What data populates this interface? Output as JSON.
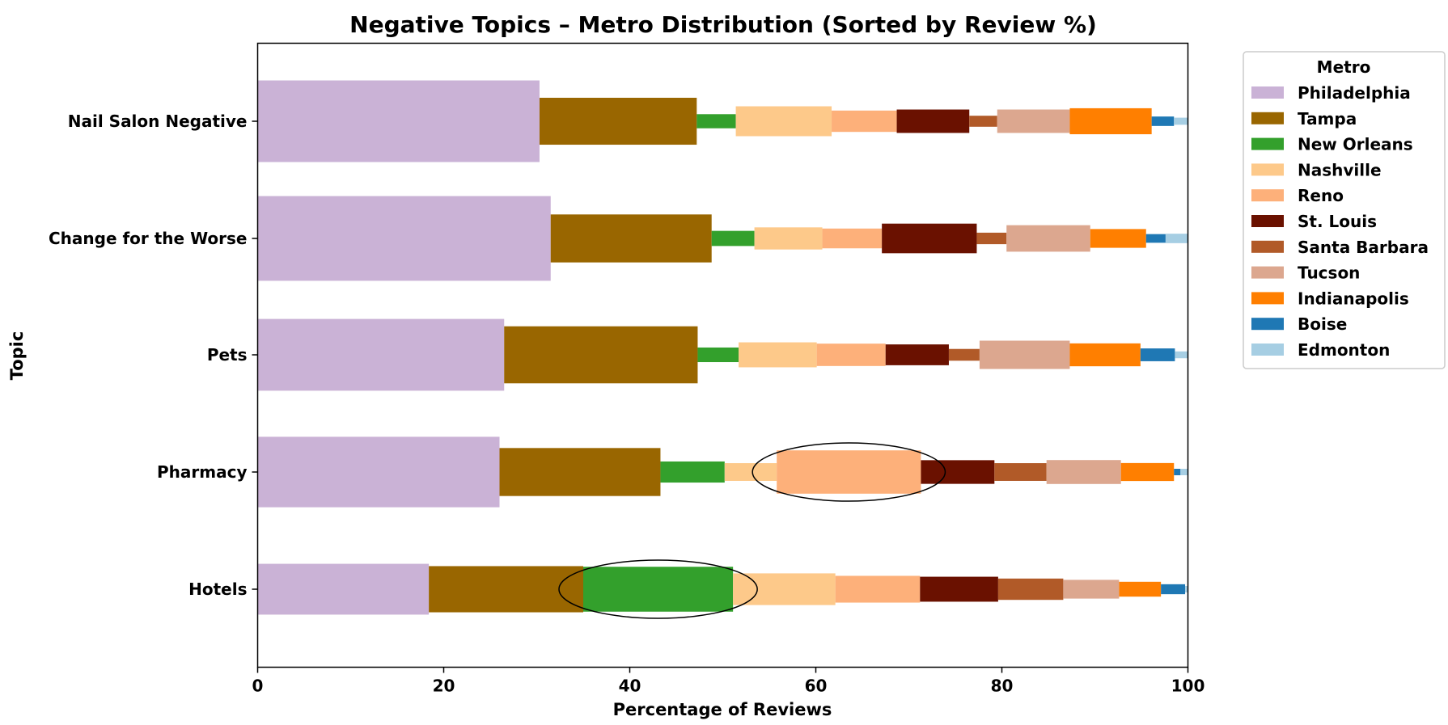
{
  "chart_data": {
    "type": "bar",
    "orientation": "horizontal-stacked",
    "title": "Negative Topics – Metro Distribution (Sorted by Review %)",
    "xlabel": "Percentage of Reviews",
    "ylabel": "Topic",
    "xlim": [
      0,
      100
    ],
    "xticks": [
      "0",
      "20",
      "40",
      "60",
      "80",
      "100"
    ],
    "grid": false,
    "legend_title": "Metro",
    "legend_position": "outside-right",
    "categories": [
      "Nail Salon Negative",
      "Change for the Worse",
      "Pets",
      "Pharmacy",
      "Hotels"
    ],
    "series": [
      {
        "name": "Philadelphia",
        "color": "#cab2d6",
        "values": [
          30.3,
          31.5,
          26.5,
          26.0,
          18.4
        ]
      },
      {
        "name": "Tampa",
        "color": "#996600",
        "values": [
          16.9,
          17.3,
          20.8,
          17.3,
          16.6
        ]
      },
      {
        "name": "New Orleans",
        "color": "#33a02c",
        "values": [
          4.2,
          4.6,
          4.4,
          6.9,
          16.1
        ]
      },
      {
        "name": "Nashville",
        "color": "#fdc98a",
        "values": [
          10.3,
          7.3,
          8.4,
          5.6,
          11.0
        ]
      },
      {
        "name": "Reno",
        "color": "#fdb07a",
        "values": [
          7.0,
          6.4,
          7.4,
          15.5,
          9.1
        ]
      },
      {
        "name": "St. Louis",
        "color": "#6a1100",
        "values": [
          7.8,
          10.2,
          6.8,
          7.9,
          8.4
        ]
      },
      {
        "name": "Santa Barbara",
        "color": "#b15a28",
        "values": [
          3.0,
          3.2,
          3.3,
          5.6,
          7.0
        ]
      },
      {
        "name": "Tucson",
        "color": "#dca78f",
        "values": [
          7.8,
          9.0,
          9.7,
          8.0,
          6.0
        ]
      },
      {
        "name": "Indianapolis",
        "color": "#ff7f00",
        "values": [
          8.8,
          6.0,
          7.6,
          5.7,
          4.5
        ]
      },
      {
        "name": "Boise",
        "color": "#1f78b4",
        "values": [
          2.4,
          2.1,
          3.7,
          0.7,
          2.6
        ]
      },
      {
        "name": "Edmonton",
        "color": "#a6cee3",
        "values": [
          1.5,
          2.4,
          1.4,
          0.8,
          0.3
        ]
      }
    ],
    "annotations": [
      {
        "type": "ellipse",
        "category": "Pharmacy",
        "series": "Reno"
      },
      {
        "type": "ellipse",
        "category": "Hotels",
        "series": "New Orleans"
      }
    ]
  }
}
